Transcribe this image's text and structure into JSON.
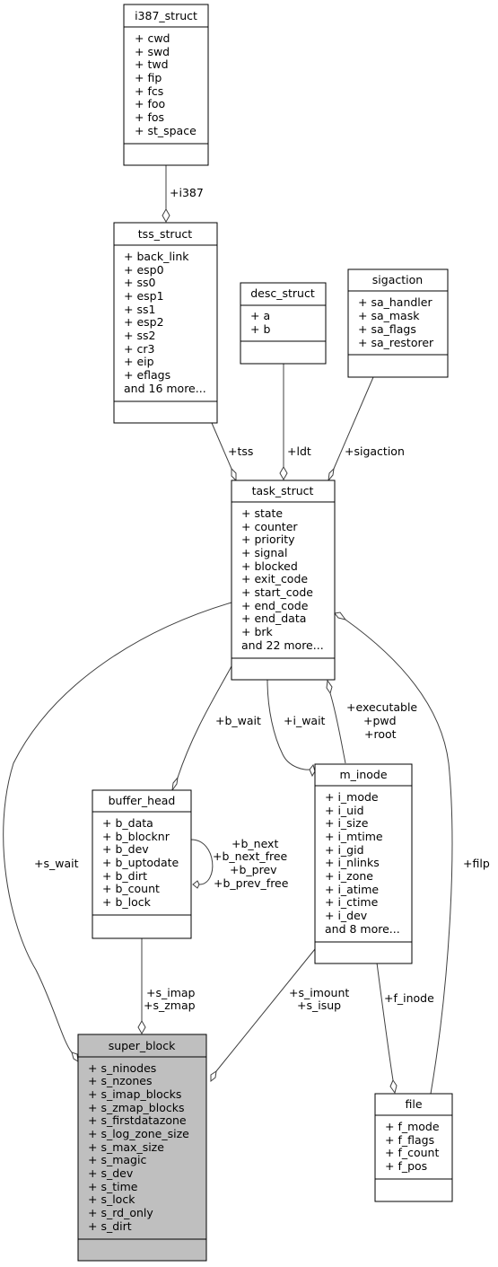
{
  "nodes": {
    "i387_struct": {
      "title": "i387_struct",
      "members": [
        "+ cwd",
        "+ swd",
        "+ twd",
        "+ fip",
        "+ fcs",
        "+ foo",
        "+ fos",
        "+ st_space"
      ]
    },
    "tss_struct": {
      "title": "tss_struct",
      "members": [
        "+ back_link",
        "+ esp0",
        "+ ss0",
        "+ esp1",
        "+ ss1",
        "+ esp2",
        "+ ss2",
        "+ cr3",
        "+ eip",
        "+ eflags",
        "and 16 more..."
      ]
    },
    "desc_struct": {
      "title": "desc_struct",
      "members": [
        "+ a",
        "+ b"
      ]
    },
    "sigaction": {
      "title": "sigaction",
      "members": [
        "+ sa_handler",
        "+ sa_mask",
        "+ sa_flags",
        "+ sa_restorer"
      ]
    },
    "task_struct": {
      "title": "task_struct",
      "members": [
        "+ state",
        "+ counter",
        "+ priority",
        "+ signal",
        "+ blocked",
        "+ exit_code",
        "+ start_code",
        "+ end_code",
        "+ end_data",
        "+ brk",
        "and 22 more..."
      ]
    },
    "buffer_head": {
      "title": "buffer_head",
      "members": [
        "+ b_data",
        "+ b_blocknr",
        "+ b_dev",
        "+ b_uptodate",
        "+ b_dirt",
        "+ b_count",
        "+ b_lock"
      ]
    },
    "m_inode": {
      "title": "m_inode",
      "members": [
        "+ i_mode",
        "+ i_uid",
        "+ i_size",
        "+ i_mtime",
        "+ i_gid",
        "+ i_nlinks",
        "+ i_zone",
        "+ i_atime",
        "+ i_ctime",
        "+ i_dev",
        "and 8 more..."
      ]
    },
    "super_block": {
      "title": "super_block",
      "members": [
        "+ s_ninodes",
        "+ s_nzones",
        "+ s_imap_blocks",
        "+ s_zmap_blocks",
        "+ s_firstdatazone",
        "+ s_log_zone_size",
        "+ s_max_size",
        "+ s_magic",
        "+ s_dev",
        "+ s_time",
        "+ s_lock",
        "+ s_rd_only",
        "+ s_dirt"
      ]
    },
    "file": {
      "title": "file",
      "members": [
        "+ f_mode",
        "+ f_flags",
        "+ f_count",
        "+ f_pos"
      ]
    }
  },
  "edges": {
    "i387": [
      "+i387"
    ],
    "tss": [
      "+tss"
    ],
    "ldt": [
      "+ldt"
    ],
    "sigaction": [
      "+sigaction"
    ],
    "b_wait": [
      "+b_wait"
    ],
    "i_wait": [
      "+i_wait"
    ],
    "executable": [
      "+executable",
      "+pwd",
      "+root"
    ],
    "b_next": [
      "+b_next",
      "+b_next_free",
      "+b_prev",
      "+b_prev_free"
    ],
    "s_wait": [
      "+s_wait"
    ],
    "filp": [
      "+filp"
    ],
    "s_imap": [
      "+s_imap",
      "+s_zmap"
    ],
    "s_imount": [
      "+s_imount",
      "+s_isup"
    ],
    "f_inode": [
      "+f_inode"
    ]
  }
}
